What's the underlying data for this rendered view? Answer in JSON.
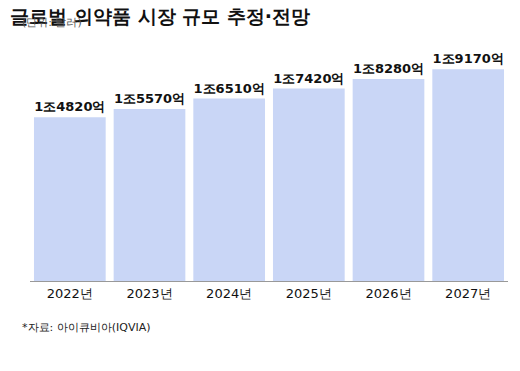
{
  "chart_data": {
    "type": "bar",
    "title": "글로벌 의약품 시장 규모 추정·전망",
    "subtitle": "(단위: 달러)",
    "note": "*자료: 아이큐비아(IQVIA)",
    "categories": [
      "2022년",
      "2023년",
      "2024년",
      "2025년",
      "2026년",
      "2027년"
    ],
    "values": [
      1482000000000,
      1557000000000,
      1651000000000,
      1742000000000,
      1828000000000,
      1917000000000
    ],
    "value_labels": [
      "1조4820억",
      "1조5570억",
      "1조6510억",
      "1조7420억",
      "1조8280억",
      "1조9170억"
    ],
    "color": "#c9d6f6",
    "ylim": [
      0,
      2000000000000
    ],
    "data_labels": true,
    "tick_labels": "x",
    "grid": false
  }
}
